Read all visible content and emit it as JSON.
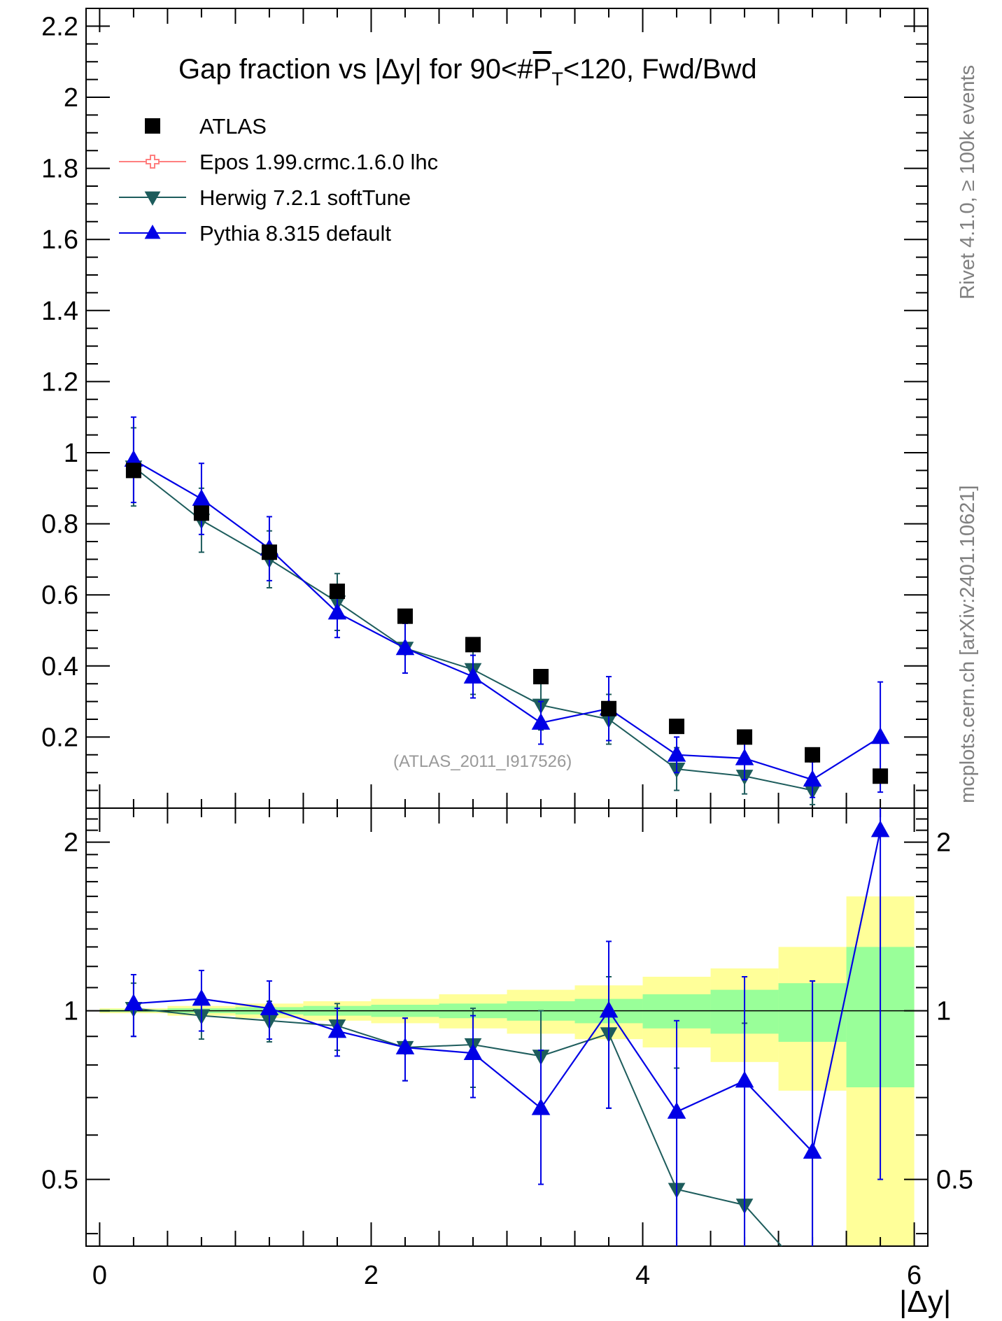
{
  "chart_data": {
    "type": "scatter",
    "title_prefix": "Gap fraction vs |Δy| for 90<#",
    "title_pt": "P",
    "title_sub": "T",
    "title_suffix": "<120, Fwd/Bwd",
    "reference": "(ATLAS_2011_I917526)",
    "side_text_top": "Rivet 4.1.0, ≥ 100k events",
    "side_text_bottom": "mcplots.cern.ch [arXiv:2401.10621]",
    "xlabel": "|Δy|",
    "xlim": [
      -0.1,
      6.1
    ],
    "ylim_main": [
      0.0,
      2.25
    ],
    "ylim_ratio": [
      0.38,
      2.3
    ],
    "x_ticks": [
      0,
      2,
      4,
      6
    ],
    "main_y_ticks": [
      0.2,
      0.4,
      0.6,
      0.8,
      1,
      1.2,
      1.4,
      1.6,
      1.8,
      2,
      2.2
    ],
    "main_y_tick_labels": [
      "0.2",
      "0.4",
      "0.6",
      "0.8",
      "1",
      "1.2",
      "1.4",
      "1.6",
      "1.8",
      "2",
      "2.2"
    ],
    "ratio_y_ticks": [
      0.5,
      1,
      2
    ],
    "ratio_y_tick_labels": [
      "0.5",
      "1",
      "2"
    ],
    "colors": {
      "atlas": "#000000",
      "epos": "#ff7f7f",
      "herwig": "#1d5c5c",
      "pythia": "#0000e6",
      "band_inner": "#99ff99",
      "band_outer": "#ffff99"
    },
    "bins": [
      0,
      0.5,
      1,
      1.5,
      2,
      2.5,
      3,
      3.5,
      4,
      4.5,
      5,
      5.5,
      6
    ],
    "x": [
      0.25,
      0.75,
      1.25,
      1.75,
      2.25,
      2.75,
      3.25,
      3.75,
      4.25,
      4.75,
      5.25,
      5.75
    ],
    "legend": [
      {
        "key": "atlas",
        "label": "ATLAS",
        "marker": "square"
      },
      {
        "key": "epos",
        "label": "Epos 1.99.crmc.1.6.0 lhc",
        "marker": "open-cross"
      },
      {
        "key": "herwig",
        "label": "Herwig 7.2.1 softTune",
        "marker": "triangle-down"
      },
      {
        "key": "pythia",
        "label": "Pythia 8.315 default",
        "marker": "triangle-up"
      }
    ],
    "atlas": {
      "values": [
        0.95,
        0.83,
        0.72,
        0.61,
        0.54,
        0.46,
        0.37,
        0.28,
        0.23,
        0.2,
        0.15,
        0.09
      ]
    },
    "herwig": {
      "values": [
        0.96,
        0.81,
        0.7,
        0.58,
        0.45,
        0.39,
        0.29,
        0.25,
        0.11,
        0.09,
        0.05,
        null
      ],
      "errors": [
        0.11,
        0.09,
        0.08,
        0.08,
        0.07,
        0.07,
        0.07,
        0.07,
        0.06,
        0.05,
        0.04,
        null
      ]
    },
    "pythia": {
      "values": [
        0.98,
        0.87,
        0.73,
        0.55,
        0.45,
        0.37,
        0.24,
        0.28,
        0.15,
        0.14,
        0.08,
        0.2
      ],
      "errors": [
        0.12,
        0.1,
        0.09,
        0.07,
        0.07,
        0.06,
        0.06,
        0.09,
        0.05,
        0.06,
        0.05,
        0.155
      ]
    },
    "ratio": {
      "inner_band": [
        [
          0.995,
          1.005
        ],
        [
          0.99,
          1.01
        ],
        [
          0.985,
          1.015
        ],
        [
          0.98,
          1.02
        ],
        [
          0.975,
          1.025
        ],
        [
          0.97,
          1.03
        ],
        [
          0.96,
          1.04
        ],
        [
          0.95,
          1.05
        ],
        [
          0.93,
          1.07
        ],
        [
          0.91,
          1.09
        ],
        [
          0.88,
          1.12
        ],
        [
          0.73,
          1.3
        ]
      ],
      "outer_band": [
        [
          0.99,
          1.01
        ],
        [
          0.98,
          1.02
        ],
        [
          0.97,
          1.03
        ],
        [
          0.96,
          1.04
        ],
        [
          0.95,
          1.05
        ],
        [
          0.93,
          1.07
        ],
        [
          0.91,
          1.09
        ],
        [
          0.89,
          1.11
        ],
        [
          0.86,
          1.15
        ],
        [
          0.81,
          1.19
        ],
        [
          0.72,
          1.3
        ],
        [
          0.3,
          1.6
        ]
      ],
      "herwig_values": [
        1.01,
        0.98,
        0.96,
        0.94,
        0.86,
        0.87,
        0.83,
        0.91,
        0.48,
        0.45,
        0.33,
        null
      ],
      "herwig_errors": [
        0.11,
        0.09,
        0.08,
        0.09,
        0.11,
        0.14,
        0.17,
        0.24,
        0.31,
        0.5,
        0.8,
        null
      ],
      "pythia_values": [
        1.03,
        1.05,
        1.01,
        0.92,
        0.86,
        0.84,
        0.67,
        1.0,
        0.66,
        0.75,
        0.56,
        2.1
      ],
      "pythia_errors": [
        0.13,
        0.13,
        0.12,
        0.09,
        0.11,
        0.14,
        0.18,
        0.33,
        0.3,
        0.4,
        0.57,
        1.6
      ]
    }
  }
}
